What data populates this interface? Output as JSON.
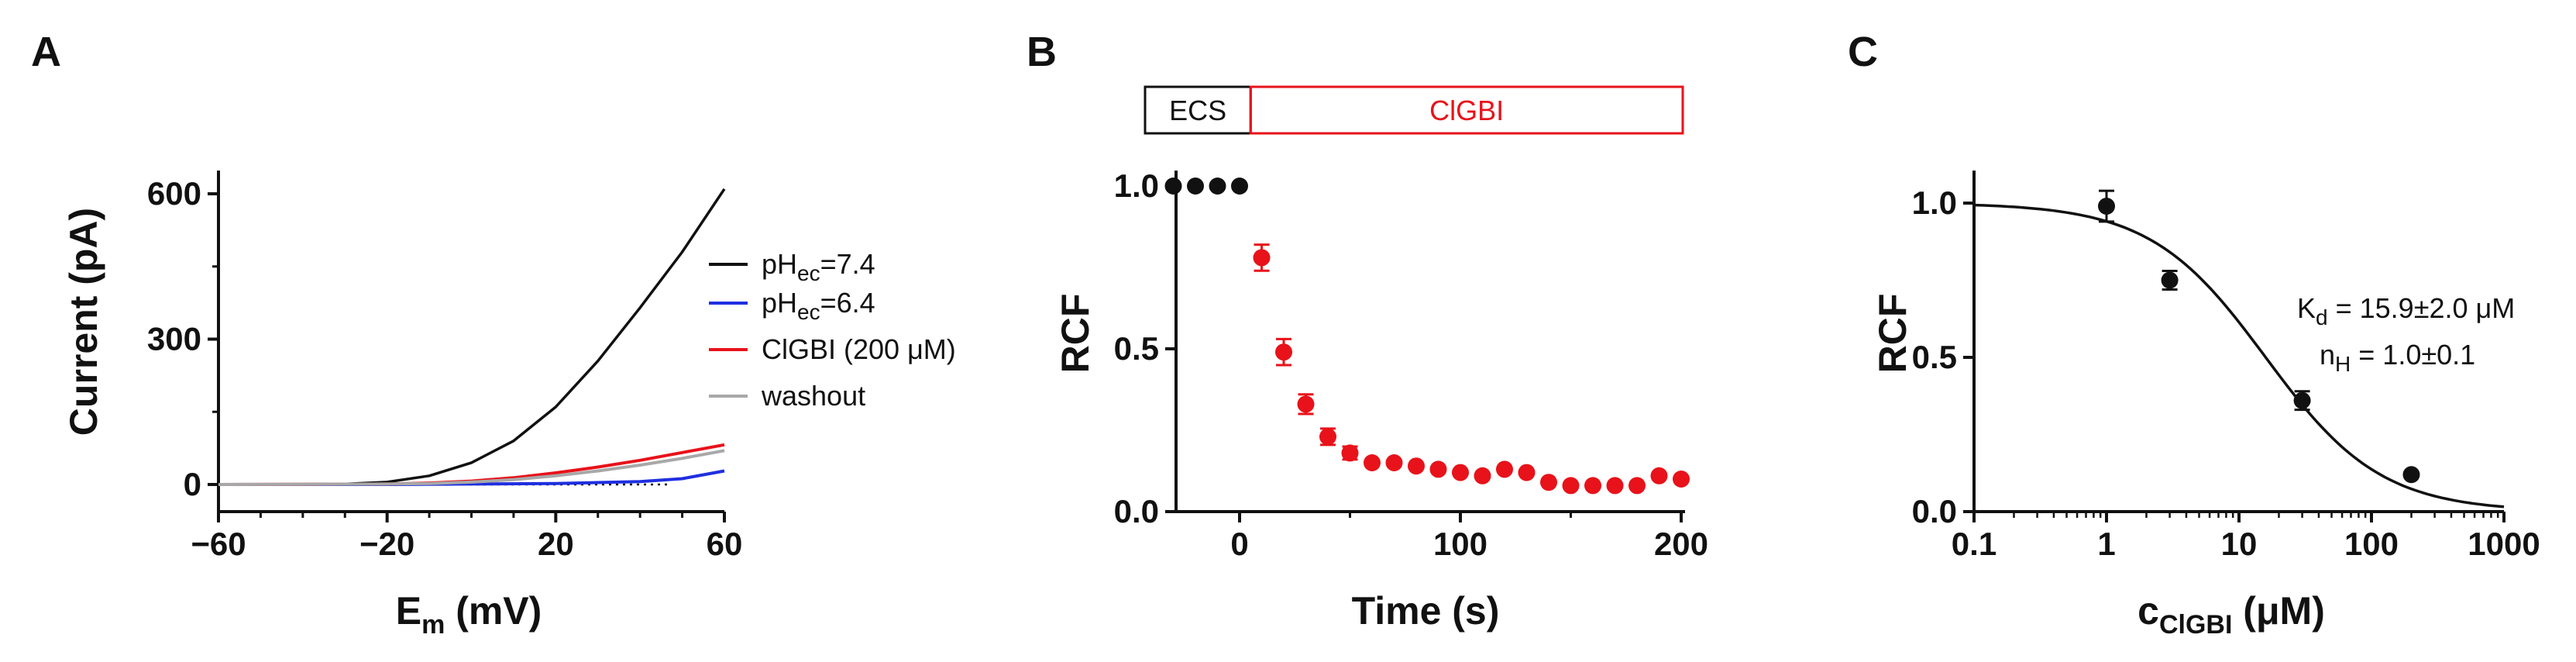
{
  "colors": {
    "black": "#111111",
    "blue": "#1f2fe0",
    "red": "#e8121a",
    "gray": "#a8a8a8"
  },
  "chart_data": [
    {
      "panel": "A",
      "type": "line",
      "xlabel_main": "E",
      "xlabel_sub": "m",
      "xlabel_unit": " (mV)",
      "ylabel": "Current (pA)",
      "xlim": [
        -60,
        60
      ],
      "ylim": [
        -30,
        650
      ],
      "xticks": [
        -60,
        -20,
        20,
        60
      ],
      "xtick_labels": [
        "−60",
        "−20",
        "20",
        "60"
      ],
      "yticks": [
        0,
        300,
        600
      ],
      "ytick_labels": [
        "0",
        "300",
        "600"
      ],
      "series": [
        {
          "name": "pH_ec=7.4",
          "legend_main": "pH",
          "legend_sub": "ec",
          "legend_rest": "=7.4",
          "color": "#111111",
          "x": [
            -60,
            -40,
            -30,
            -20,
            -10,
            0,
            10,
            20,
            30,
            40,
            50,
            60
          ],
          "y": [
            0,
            0,
            1,
            5,
            18,
            45,
            90,
            160,
            255,
            365,
            480,
            610
          ]
        },
        {
          "name": "pH_ec=6.4",
          "legend_main": "pH",
          "legend_sub": "ec",
          "legend_rest": "=6.4",
          "color": "#1f2fe0",
          "x": [
            -60,
            -20,
            0,
            20,
            30,
            40,
            50,
            55,
            60
          ],
          "y": [
            0,
            0,
            1,
            2,
            4,
            6,
            12,
            20,
            28
          ]
        },
        {
          "name": "ClGBI (200 μM)",
          "legend_main": "ClGBI (200 μM)",
          "legend_sub": "",
          "legend_rest": "",
          "color": "#e8121a",
          "x": [
            -60,
            -20,
            -10,
            0,
            10,
            20,
            30,
            40,
            50,
            60
          ],
          "y": [
            0,
            1,
            3,
            7,
            14,
            24,
            36,
            50,
            66,
            82
          ]
        },
        {
          "name": "washout",
          "legend_main": "washout",
          "legend_sub": "",
          "legend_rest": "",
          "color": "#a8a8a8",
          "x": [
            -60,
            -20,
            -10,
            0,
            10,
            20,
            30,
            40,
            50,
            60
          ],
          "y": [
            0,
            1,
            2,
            5,
            10,
            18,
            28,
            40,
            54,
            70
          ]
        }
      ]
    },
    {
      "panel": "B",
      "type": "scatter",
      "xlabel": "Time (s)",
      "ylabel": "RCF",
      "xlim": [
        -30,
        200
      ],
      "ylim": [
        0,
        1.1
      ],
      "xticks": [
        0,
        100,
        200
      ],
      "xtick_labels": [
        "0",
        "100",
        "200"
      ],
      "yticks": [
        0,
        0.5,
        1.0
      ],
      "ytick_labels": [
        "0.0",
        "0.5",
        "1.0"
      ],
      "bar_labels": [
        "ECS",
        "ClGBI"
      ],
      "bar_boundary_time": 5,
      "series": [
        {
          "name": "ECS",
          "color": "#111111",
          "x": [
            -30,
            -20,
            -10,
            0
          ],
          "y": [
            1.0,
            1.0,
            1.0,
            1.0
          ],
          "err": [
            0,
            0,
            0,
            0
          ]
        },
        {
          "name": "ClGBI",
          "color": "#e8121a",
          "x": [
            10,
            20,
            30,
            40,
            50,
            60,
            70,
            80,
            90,
            100,
            110,
            120,
            130,
            140,
            150,
            160,
            170,
            180,
            190,
            200
          ],
          "y": [
            0.78,
            0.49,
            0.33,
            0.23,
            0.18,
            0.15,
            0.15,
            0.14,
            0.13,
            0.12,
            0.11,
            0.13,
            0.12,
            0.09,
            0.08,
            0.08,
            0.08,
            0.08,
            0.11,
            0.1
          ],
          "err": [
            0.04,
            0.04,
            0.03,
            0.025,
            0.02,
            0.01,
            0.01,
            0.01,
            0.01,
            0.01,
            0.01,
            0.01,
            0.01,
            0.01,
            0.01,
            0.01,
            0.01,
            0.01,
            0.01,
            0.01
          ]
        }
      ]
    },
    {
      "panel": "C",
      "type": "scatter",
      "xscale": "log",
      "xlabel_main": "c",
      "xlabel_sub": "ClGBI",
      "xlabel_unit": " (μM)",
      "ylabel": "RCF",
      "xlim": [
        0.1,
        1000
      ],
      "ylim": [
        0,
        1.1
      ],
      "xticks": [
        0.1,
        1,
        10,
        100,
        1000
      ],
      "xtick_labels": [
        "0.1",
        "1",
        "10",
        "100",
        "1000"
      ],
      "yticks": [
        0,
        0.5,
        1.0
      ],
      "ytick_labels": [
        "0.0",
        "0.5",
        "1.0"
      ],
      "points": {
        "x": [
          1,
          3,
          30,
          200
        ],
        "y": [
          0.99,
          0.75,
          0.36,
          0.12
        ],
        "err": [
          0.05,
          0.03,
          0.03,
          0.01
        ]
      },
      "fit": {
        "kd": 15.9,
        "nh": 1.0
      },
      "annotations": [
        {
          "main": "K",
          "sub": "d",
          "rest": " = 15.9±2.0 μM"
        },
        {
          "main": "n",
          "sub": "H",
          "rest": " = 1.0±0.1"
        }
      ]
    }
  ],
  "panel_labels": [
    "A",
    "B",
    "C"
  ]
}
